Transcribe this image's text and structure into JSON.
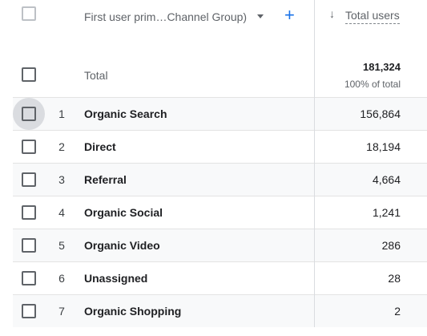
{
  "header": {
    "dimension_label": "First user prim…Channel Group)",
    "add_label": "+",
    "sort_arrow": "↓",
    "metric_label": "Total users"
  },
  "total": {
    "label": "Total",
    "value": "181,324",
    "percent": "100% of total"
  },
  "rows": [
    {
      "rank": "1",
      "channel": "Organic Search",
      "users": "156,864"
    },
    {
      "rank": "2",
      "channel": "Direct",
      "users": "18,194"
    },
    {
      "rank": "3",
      "channel": "Referral",
      "users": "4,664"
    },
    {
      "rank": "4",
      "channel": "Organic Social",
      "users": "1,241"
    },
    {
      "rank": "5",
      "channel": "Organic Video",
      "users": "286"
    },
    {
      "rank": "6",
      "channel": "Unassigned",
      "users": "28"
    },
    {
      "rank": "7",
      "channel": "Organic Shopping",
      "users": "2"
    }
  ]
}
